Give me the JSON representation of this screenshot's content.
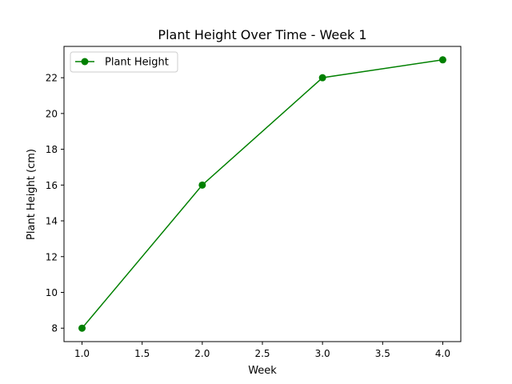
{
  "chart_data": {
    "type": "line",
    "title": "Plant Height Over Time - Week 1",
    "xlabel": "Week",
    "ylabel": "Plant Height (cm)",
    "xlim": [
      0.85,
      4.15
    ],
    "ylim": [
      7.25,
      23.75
    ],
    "xticks": [
      "1.0",
      "1.5",
      "2.0",
      "2.5",
      "3.0",
      "3.5",
      "4.0"
    ],
    "yticks": [
      "8",
      "10",
      "12",
      "14",
      "16",
      "18",
      "20",
      "22"
    ],
    "grid": false,
    "legend_position": "top-left",
    "series": [
      {
        "name": "Plant Height",
        "color": "#008000",
        "marker": "circle",
        "x": [
          1.0,
          2.0,
          3.0,
          4.0
        ],
        "y": [
          8,
          16,
          22,
          23
        ]
      }
    ]
  }
}
